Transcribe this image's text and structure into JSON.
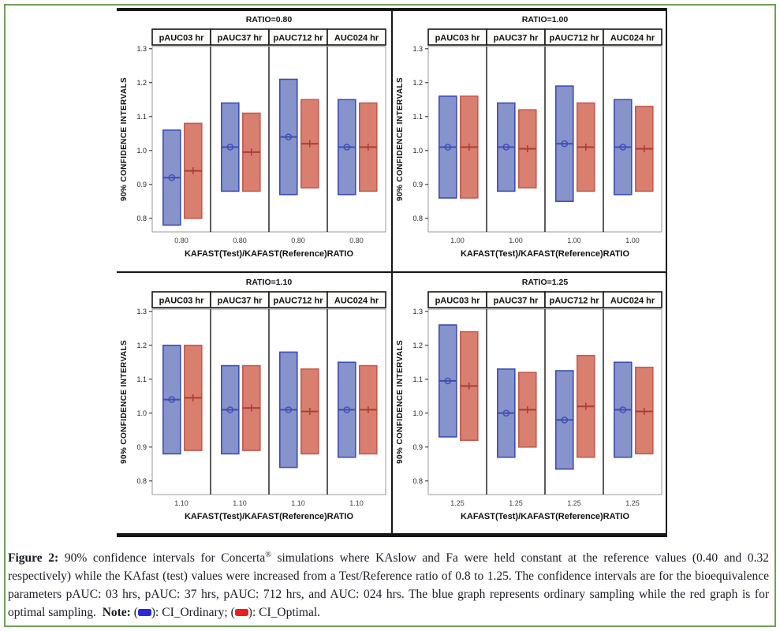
{
  "figure": {
    "x_axis_title": "KAFAST(Test)/KAFAST(Reference)RATIO",
    "y_axis_title": "90% CONFIDENCE INTERVALS",
    "column_headers": [
      "pAUC03 hr",
      "pAUC37 hr",
      "pAUC712 hr",
      "AUC024 hr"
    ],
    "y_ticks": [
      1.3,
      1.2,
      1.1,
      1.0,
      0.9,
      0.8
    ],
    "ylim": [
      0.76,
      1.31
    ],
    "colors": {
      "ordinary_fill": "#8793cb",
      "ordinary_stroke": "#3d4eb5",
      "ordinary_marker": "#3d4eb5",
      "optimal_fill": "#d87f70",
      "optimal_stroke": "#c65a50",
      "optimal_marker": "#ae3c34"
    }
  },
  "chart_data": [
    {
      "type": "bar",
      "title": "RATIO=0.80",
      "x_tick_label": "0.80",
      "categories": [
        "pAUC03 hr",
        "pAUC37 hr",
        "pAUC712 hr",
        "AUC024 hr"
      ],
      "series": [
        {
          "name": "CI_Ordinary",
          "intervals": [
            {
              "low": 0.78,
              "mid": 0.92,
              "high": 1.06
            },
            {
              "low": 0.88,
              "mid": 1.01,
              "high": 1.14
            },
            {
              "low": 0.87,
              "mid": 1.04,
              "high": 1.21
            },
            {
              "low": 0.87,
              "mid": 1.01,
              "high": 1.15
            }
          ]
        },
        {
          "name": "CI_Optimal",
          "intervals": [
            {
              "low": 0.8,
              "mid": 0.94,
              "high": 1.08
            },
            {
              "low": 0.88,
              "mid": 0.995,
              "high": 1.11
            },
            {
              "low": 0.89,
              "mid": 1.02,
              "high": 1.15
            },
            {
              "low": 0.88,
              "mid": 1.01,
              "high": 1.14
            }
          ]
        }
      ]
    },
    {
      "type": "bar",
      "title": "RATIO=1.00",
      "x_tick_label": "1.00",
      "categories": [
        "pAUC03 hr",
        "pAUC37 hr",
        "pAUC712 hr",
        "AUC024 hr"
      ],
      "series": [
        {
          "name": "CI_Ordinary",
          "intervals": [
            {
              "low": 0.86,
              "mid": 1.01,
              "high": 1.16
            },
            {
              "low": 0.88,
              "mid": 1.01,
              "high": 1.14
            },
            {
              "low": 0.85,
              "mid": 1.02,
              "high": 1.19
            },
            {
              "low": 0.87,
              "mid": 1.01,
              "high": 1.15
            }
          ]
        },
        {
          "name": "CI_Optimal",
          "intervals": [
            {
              "low": 0.86,
              "mid": 1.01,
              "high": 1.16
            },
            {
              "low": 0.89,
              "mid": 1.005,
              "high": 1.12
            },
            {
              "low": 0.88,
              "mid": 1.01,
              "high": 1.14
            },
            {
              "low": 0.88,
              "mid": 1.005,
              "high": 1.13
            }
          ]
        }
      ]
    },
    {
      "type": "bar",
      "title": "RATIO=1.10",
      "x_tick_label": "1.10",
      "categories": [
        "pAUC03 hr",
        "pAUC37 hr",
        "pAUC712 hr",
        "AUC024 hr"
      ],
      "series": [
        {
          "name": "CI_Ordinary",
          "intervals": [
            {
              "low": 0.88,
              "mid": 1.04,
              "high": 1.2
            },
            {
              "low": 0.88,
              "mid": 1.01,
              "high": 1.14
            },
            {
              "low": 0.84,
              "mid": 1.01,
              "high": 1.18
            },
            {
              "low": 0.87,
              "mid": 1.01,
              "high": 1.15
            }
          ]
        },
        {
          "name": "CI_Optimal",
          "intervals": [
            {
              "low": 0.89,
              "mid": 1.045,
              "high": 1.2
            },
            {
              "low": 0.89,
              "mid": 1.015,
              "high": 1.14
            },
            {
              "low": 0.88,
              "mid": 1.005,
              "high": 1.13
            },
            {
              "low": 0.88,
              "mid": 1.01,
              "high": 1.14
            }
          ]
        }
      ]
    },
    {
      "type": "bar",
      "title": "RATIO=1.25",
      "x_tick_label": "1.25",
      "categories": [
        "pAUC03 hr",
        "pAUC37 hr",
        "pAUC712 hr",
        "AUC024 hr"
      ],
      "series": [
        {
          "name": "CI_Ordinary",
          "intervals": [
            {
              "low": 0.93,
              "mid": 1.095,
              "high": 1.26
            },
            {
              "low": 0.87,
              "mid": 1.0,
              "high": 1.13
            },
            {
              "low": 0.835,
              "mid": 0.98,
              "high": 1.125
            },
            {
              "low": 0.87,
              "mid": 1.01,
              "high": 1.15
            }
          ]
        },
        {
          "name": "CI_Optimal",
          "intervals": [
            {
              "low": 0.92,
              "mid": 1.08,
              "high": 1.24
            },
            {
              "low": 0.9,
              "mid": 1.01,
              "high": 1.12
            },
            {
              "low": 0.87,
              "mid": 1.02,
              "high": 1.17
            },
            {
              "low": 0.88,
              "mid": 1.005,
              "high": 1.135
            }
          ]
        }
      ]
    }
  ],
  "caption": {
    "label": "Figure 2:",
    "body_pre": " 90% confidence intervals for Concerta",
    "reg_mark": "®",
    "body_post": " simulations where KAslow and Fa were held constant at the reference values (0.40 and 0.32 respectively) while the KAfast (test) values were increased from a Test/Reference ratio of 0.8 to 1.25. The confidence intervals are for the bioequivalence parameters pAUC: 03 hrs, pAUC: 37 hrs, pAUC: 712 hrs, and AUC: 024 hrs. The blue graph represents ordinary sampling while the red graph is for optimal sampling.  ",
    "note_label": "Note:",
    "note_open": " (",
    "note_after_blue": "): CI_Ordinary; (",
    "note_after_red": "): CI_Optimal.",
    "swatch_blue": "#2a2ad0",
    "swatch_red": "#e91f1f"
  },
  "page": {
    "frame_color": "#6f9f58"
  }
}
